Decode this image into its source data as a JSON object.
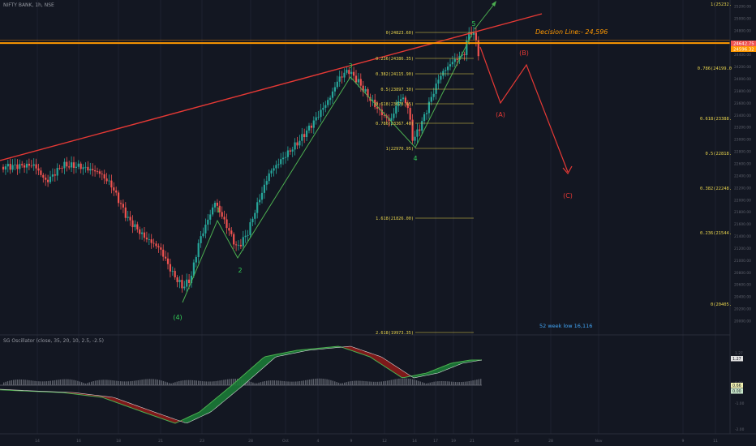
{
  "header": {
    "symbol": "NIFTY BANK, 1h, NSE",
    "oscillator_label": "SG Oscillator (close, 35, 20, 10, 2.5, -2.5)"
  },
  "colors": {
    "background": "#131722",
    "bull_candle": "#26a69a",
    "bear_candle": "#ef5350",
    "wave_line": "#4caf50",
    "trend_line": "#e53935",
    "decision_line": "#ff9800",
    "fib_line": "#e8d44d",
    "wave_label": "#34d058",
    "projection": "#e53935"
  },
  "chart_data": {
    "type": "candlestick",
    "title": "NIFTY BANK, 1h, NSE",
    "ylim": [
      19850,
      25300
    ],
    "x_ticks": [
      "14",
      "16",
      "18",
      "21",
      "23",
      "28",
      "Oct",
      "4",
      "9",
      "12",
      "14",
      "17",
      "19",
      "21",
      "26",
      "28",
      "Nov",
      "9",
      "11"
    ],
    "y_ticks": [
      "25400.00",
      "25200.00",
      "25000.00",
      "24800.00",
      "24600.00",
      "24400.00",
      "24200.00",
      "24000.00",
      "23800.00",
      "23600.00",
      "23400.00",
      "23200.00",
      "23000.00",
      "22800.00",
      "22600.00",
      "22400.00",
      "22200.00",
      "22000.00",
      "21800.00",
      "21600.00",
      "21400.00",
      "21200.00",
      "21000.00",
      "20800.00",
      "20600.00",
      "20400.00",
      "20200.00",
      "20000.00"
    ],
    "last_price_tags": [
      "24642.75",
      "24596.32"
    ],
    "decision_line": {
      "label": "Decision Line:- 24,596",
      "value": 24596
    },
    "wave_labels": [
      {
        "label": "(4)",
        "value": 20400
      },
      {
        "label": "1",
        "value": 21970
      },
      {
        "label": "2",
        "value": 21200
      },
      {
        "label": "3",
        "value": 24200
      },
      {
        "label": "4",
        "value": 22970
      },
      {
        "label": "5",
        "value": 24823
      }
    ],
    "fib_retracement": [
      {
        "label": "0(24823.60)",
        "value": 24823.6
      },
      {
        "label": "0.236(24386.35)",
        "value": 24386.35
      },
      {
        "label": "0.382(24115.90)",
        "value": 24115.9
      },
      {
        "label": "0.5(23897.30)",
        "value": 23897.3
      },
      {
        "label": "0.618(23678.65)",
        "value": 23678.65
      },
      {
        "label": "0.786(23367.40)",
        "value": 23367.4
      },
      {
        "label": "1(22970.95)",
        "value": 22970.95
      },
      {
        "label": "1.618(21826.00)",
        "value": 21826
      },
      {
        "label": "2.618(19973.35)",
        "value": 19973.35
      }
    ],
    "right_fib": [
      {
        "label": "1(25232.",
        "value": 25232
      },
      {
        "label": "0.786(24199.0",
        "value": 24199
      },
      {
        "label": "0.618(23388.",
        "value": 23388
      },
      {
        "label": "0.5(22818.",
        "value": 22818
      },
      {
        "label": "0.382(22248.",
        "value": 22248
      },
      {
        "label": "0.236(21544.",
        "value": 21544
      },
      {
        "label": "0(20405.",
        "value": 20405
      }
    ],
    "projection_labels": [
      "(B)",
      "(A)",
      "(C)"
    ],
    "note": "52 week  low 16,116",
    "osc_ticks": [
      "1.27",
      "1.00",
      "0.00",
      "-1.00",
      "-2.00"
    ],
    "osc_tags": [
      "1.27",
      "0.66",
      "0.00"
    ]
  }
}
